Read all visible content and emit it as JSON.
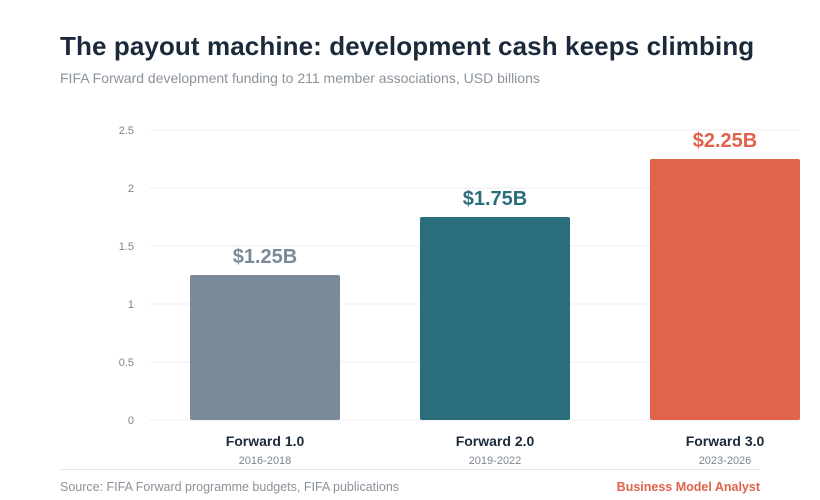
{
  "header": {
    "title": "The payout machine: development cash keeps climbing",
    "subtitle": "FIFA Forward development funding to 211 member associations, USD billions"
  },
  "chart_data": {
    "type": "bar",
    "categories": [
      "Forward 1.0",
      "Forward 2.0",
      "Forward 3.0"
    ],
    "periods": [
      "2016-2018",
      "2019-2022",
      "2023-2026"
    ],
    "values": [
      1.25,
      1.75,
      2.25
    ],
    "data_labels": [
      "$1.25B",
      "$1.75B",
      "$2.25B"
    ],
    "colors": [
      "#7b8a98",
      "#2a6e7b",
      "#e0634b"
    ],
    "y_ticks": [
      "0",
      "0.5",
      "1",
      "1.5",
      "2",
      "2.5"
    ],
    "y_tick_values": [
      0,
      0.5,
      1,
      1.5,
      2,
      2.5
    ],
    "ylim": [
      0,
      2.5
    ],
    "grid": true,
    "legend": "none"
  },
  "footer": {
    "source": "Source: FIFA Forward programme budgets, FIFA publications",
    "brand": "Business Model Analyst",
    "brand_color": "#e0634b"
  }
}
